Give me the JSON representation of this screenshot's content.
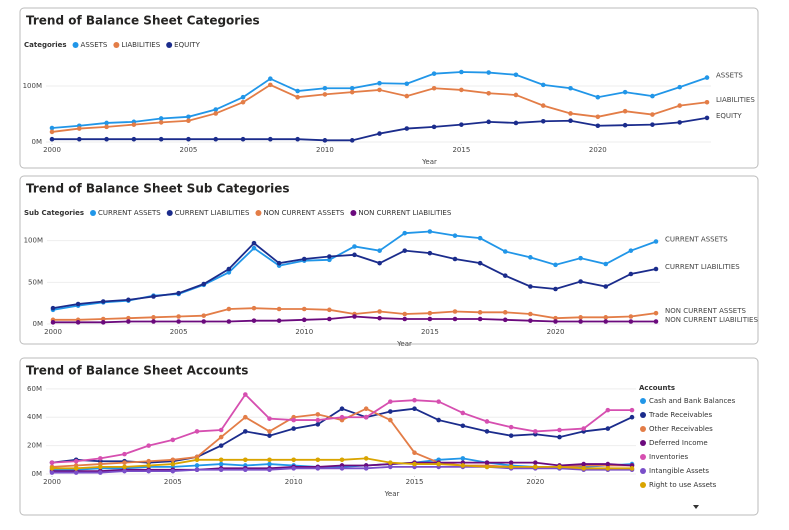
{
  "chart_data": [
    {
      "type": "line",
      "title": "Trend of Balance Sheet Categories",
      "legend_title": "Categories",
      "legend": "top",
      "end_labels": true,
      "x_label": "Year",
      "x": [
        2000,
        2001,
        2002,
        2003,
        2004,
        2005,
        2006,
        2007,
        2008,
        2009,
        2010,
        2011,
        2012,
        2013,
        2014,
        2015,
        2016,
        2017,
        2018,
        2019,
        2020,
        2021,
        2022,
        2023,
        2024
      ],
      "xlim": [
        2000,
        2024
      ],
      "xticks": [
        2000,
        2005,
        2010,
        2015,
        2020
      ],
      "ylim": [
        0,
        150
      ],
      "yticks": [
        {
          "value": 0,
          "label": "0M"
        },
        {
          "value": 100,
          "label": "100M"
        }
      ],
      "series": [
        {
          "name": "ASSETS",
          "color": "#2196e8",
          "values": [
            25,
            29,
            34,
            36,
            42,
            45,
            58,
            80,
            113,
            91,
            96,
            96,
            105,
            104,
            122,
            125,
            124,
            120,
            102,
            96,
            80,
            89,
            82,
            98,
            115
          ]
        },
        {
          "name": "LIABILITIES",
          "color": "#e37d47",
          "values": [
            18,
            24,
            27,
            31,
            35,
            38,
            51,
            71,
            102,
            80,
            85,
            89,
            93,
            82,
            96,
            93,
            87,
            84,
            65,
            51,
            45,
            55,
            49,
            65,
            71
          ]
        },
        {
          "name": "EQUITY",
          "color": "#1b2c8c",
          "values": [
            5,
            5,
            5,
            5,
            5,
            5,
            5,
            5,
            5,
            5,
            3,
            3,
            15,
            24,
            27,
            31,
            36,
            34,
            37,
            38,
            29,
            30,
            31,
            35,
            43
          ]
        }
      ]
    },
    {
      "type": "line",
      "title": "Trend of Balance Sheet Sub Categories",
      "legend_title": "Sub Categories",
      "legend": "top",
      "end_labels": true,
      "x_label": "Year",
      "x": [
        2000,
        2001,
        2002,
        2003,
        2004,
        2005,
        2006,
        2007,
        2008,
        2009,
        2010,
        2011,
        2012,
        2013,
        2014,
        2015,
        2016,
        2017,
        2018,
        2019,
        2020,
        2021,
        2022,
        2023,
        2024
      ],
      "xlim": [
        2000,
        2024
      ],
      "xticks": [
        2000,
        2005,
        2010,
        2015,
        2020
      ],
      "ylim": [
        0,
        120
      ],
      "yticks": [
        {
          "value": 0,
          "label": "0M"
        },
        {
          "value": 50,
          "label": "50M"
        },
        {
          "value": 100,
          "label": "100M"
        }
      ],
      "series": [
        {
          "name": "CURRENT ASSETS",
          "color": "#2196e8",
          "values": [
            17,
            22,
            26,
            28,
            34,
            36,
            47,
            62,
            91,
            70,
            76,
            77,
            93,
            88,
            109,
            111,
            106,
            103,
            87,
            80,
            71,
            79,
            72,
            88,
            99
          ]
        },
        {
          "name": "CURRENT LIABILITIES",
          "color": "#1b2c8c",
          "values": [
            19,
            24,
            27,
            29,
            33,
            37,
            48,
            66,
            97,
            73,
            78,
            81,
            83,
            73,
            88,
            85,
            78,
            73,
            58,
            45,
            42,
            51,
            45,
            60,
            66
          ]
        },
        {
          "name": "NON CURRENT ASSETS",
          "color": "#e37d47",
          "values": [
            5,
            5,
            6,
            7,
            8,
            9,
            10,
            18,
            19,
            18,
            18,
            17,
            12,
            15,
            12,
            13,
            15,
            14,
            14,
            12,
            7,
            8,
            8,
            9,
            13
          ]
        },
        {
          "name": "NON CURRENT LIABILITIES",
          "color": "#6b0a7d",
          "values": [
            2,
            2,
            2,
            3,
            3,
            3,
            3,
            3,
            4,
            4,
            5,
            6,
            9,
            7,
            6,
            6,
            6,
            6,
            5,
            4,
            3,
            3,
            3,
            3,
            3
          ]
        }
      ]
    },
    {
      "type": "line",
      "title": "Trend of Balance Sheet Accounts",
      "legend_title": "Accounts",
      "legend": "right",
      "end_labels": false,
      "x_label": "Year",
      "x": [
        2000,
        2001,
        2002,
        2003,
        2004,
        2005,
        2006,
        2007,
        2008,
        2009,
        2010,
        2011,
        2012,
        2013,
        2014,
        2015,
        2016,
        2017,
        2018,
        2019,
        2020,
        2021,
        2022,
        2023,
        2024
      ],
      "xlim": [
        2000,
        2024
      ],
      "xticks": [
        2000,
        2005,
        2010,
        2015,
        2020
      ],
      "ylim": [
        0,
        62
      ],
      "yticks": [
        {
          "value": 0,
          "label": "0M"
        },
        {
          "value": 20,
          "label": "20M"
        },
        {
          "value": 40,
          "label": "40M"
        },
        {
          "value": 60,
          "label": "60M"
        }
      ],
      "series": [
        {
          "name": "Cash and Bank Balances",
          "color": "#2196e8",
          "values": [
            3,
            3,
            4,
            4,
            5,
            5,
            6,
            7,
            6,
            7,
            6,
            5,
            5,
            6,
            7,
            8,
            10,
            11,
            8,
            6,
            5,
            4,
            5,
            6,
            7
          ]
        },
        {
          "name": "Trade Receivables",
          "color": "#1b2c8c",
          "values": [
            8,
            10,
            9,
            9,
            8,
            9,
            12,
            20,
            30,
            27,
            32,
            35,
            46,
            40,
            44,
            46,
            38,
            34,
            30,
            27,
            28,
            26,
            30,
            32,
            40
          ]
        },
        {
          "name": "Other Receivables",
          "color": "#e37d47",
          "values": [
            5,
            6,
            7,
            8,
            9,
            10,
            12,
            26,
            40,
            30,
            40,
            42,
            38,
            46,
            38,
            15,
            8,
            6,
            6,
            5,
            5,
            5,
            6,
            6,
            6
          ]
        },
        {
          "name": "Deferred Income",
          "color": "#6b0a7d",
          "values": [
            2,
            2,
            2,
            3,
            3,
            3,
            3,
            4,
            4,
            4,
            5,
            5,
            6,
            6,
            7,
            8,
            8,
            8,
            8,
            8,
            8,
            6,
            7,
            7,
            6
          ]
        },
        {
          "name": "Inventories",
          "color": "#d64fb0",
          "values": [
            8,
            9,
            11,
            14,
            20,
            24,
            30,
            31,
            56,
            39,
            38,
            38,
            40,
            40,
            51,
            52,
            51,
            43,
            37,
            33,
            30,
            31,
            32,
            45,
            45
          ]
        },
        {
          "name": "Intangible Assets",
          "color": "#7a4fc9",
          "values": [
            1,
            1,
            1,
            2,
            2,
            2,
            3,
            3,
            3,
            3,
            4,
            4,
            4,
            4,
            5,
            5,
            5,
            5,
            5,
            4,
            4,
            4,
            3,
            3,
            3
          ]
        },
        {
          "name": "Right to use Assets",
          "color": "#d9a400",
          "values": [
            4,
            4,
            5,
            5,
            6,
            7,
            10,
            10,
            10,
            10,
            10,
            10,
            10,
            11,
            8,
            7,
            7,
            6,
            5,
            5,
            5,
            5,
            4,
            4,
            4
          ]
        }
      ]
    }
  ]
}
